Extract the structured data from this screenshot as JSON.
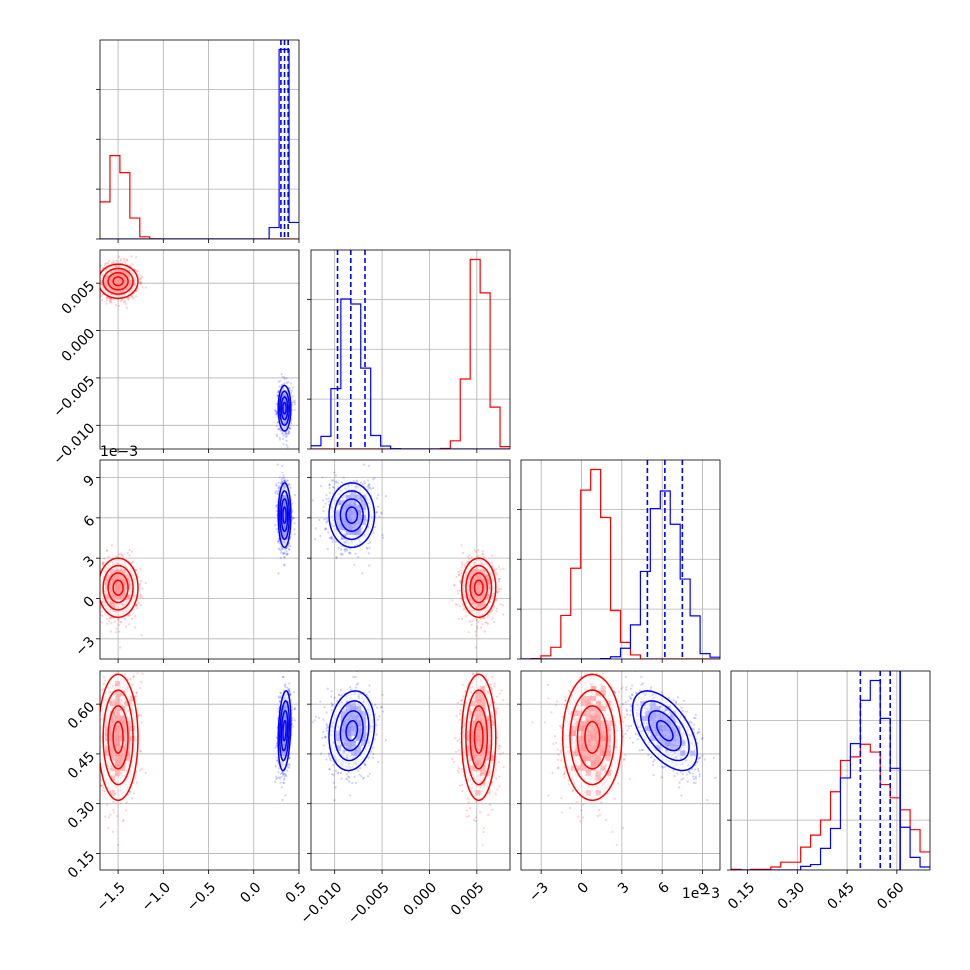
{
  "chart_data": {
    "type": "corner",
    "parameters": [
      {
        "ticks": [
          -1.5,
          -1.0,
          -0.5,
          0.0,
          0.5
        ],
        "tick_labels": [
          "−1.5",
          "−1.0",
          "−0.5",
          "0.0",
          "0.5"
        ],
        "range": [
          -1.7,
          0.5
        ],
        "offset_text": ""
      },
      {
        "ticks": [
          -0.01,
          -0.005,
          0.0,
          0.005
        ],
        "tick_labels": [
          "−0.010",
          "−0.005",
          "0.000",
          "0.005"
        ],
        "range": [
          -0.0125,
          0.0085
        ],
        "offset_text": ""
      },
      {
        "ticks": [
          -3,
          0,
          3,
          6,
          9
        ],
        "tick_labels": [
          "−3",
          "0",
          "3",
          "6",
          "9"
        ],
        "range": [
          -4.5,
          10.3
        ],
        "offset_text": "1e−3"
      },
      {
        "ticks": [
          0.15,
          0.3,
          0.45,
          0.6
        ],
        "tick_labels": [
          "0.15",
          "0.30",
          "0.45",
          "0.60"
        ],
        "range": [
          0.1,
          0.7
        ],
        "offset_text": ""
      }
    ],
    "series": [
      {
        "color": "#ff0000",
        "means": [
          -1.5,
          0.0052,
          0.8,
          0.5
        ],
        "sds": [
          0.11,
          0.0009,
          1.1,
          0.095
        ],
        "corr": [
          [
            1,
            0,
            0,
            0
          ],
          [
            0,
            1,
            0,
            0
          ],
          [
            0,
            0,
            1,
            0
          ],
          [
            0,
            0,
            0,
            1
          ]
        ]
      },
      {
        "color": "#0000ff",
        "means": [
          0.34,
          -0.0082,
          6.2,
          0.52
        ],
        "sds": [
          0.035,
          0.0012,
          1.2,
          0.06
        ],
        "corr": [
          [
            1,
            0,
            0,
            0.25
          ],
          [
            0,
            1,
            0,
            0.15
          ],
          [
            0,
            0,
            1,
            -0.55
          ],
          [
            0.25,
            0.15,
            -0.55,
            1
          ]
        ]
      }
    ],
    "quantile_lines": {
      "color": "#0000ff",
      "values": [
        [
          0.3,
          0.34,
          0.38
        ],
        [
          -0.0097,
          -0.0083,
          -0.0068
        ],
        [
          4.9,
          6.2,
          7.5
        ],
        [
          0.49,
          0.55,
          0.58
        ]
      ]
    },
    "true_values": {
      "color": "#0000ff",
      "values": [
        null,
        null,
        null,
        0.61
      ]
    }
  }
}
